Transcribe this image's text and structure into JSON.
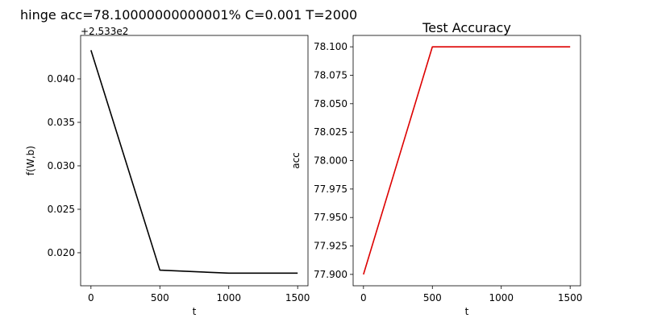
{
  "figure": {
    "suptitle": "hinge acc=78.10000000000001% C=0.001 T=2000"
  },
  "chart_data": [
    {
      "type": "line",
      "title": "",
      "xlabel": "t",
      "ylabel": "f(W,b)",
      "offset_text": "+2.533e2",
      "x": [
        0,
        500,
        1000,
        1500
      ],
      "series": [
        {
          "color": "#000000",
          "values": [
            0.0433,
            0.018,
            0.01765,
            0.01765
          ]
        }
      ],
      "xlim": [
        -75,
        1575
      ],
      "ylim": [
        0.0162,
        0.045
      ],
      "xticks": [
        0,
        500,
        1000,
        1500
      ],
      "xtick_labels": [
        "0",
        "500",
        "1000",
        "1500"
      ],
      "yticks": [
        0.02,
        0.025,
        0.03,
        0.035,
        0.04
      ],
      "ytick_labels": [
        "0.020",
        "0.025",
        "0.030",
        "0.035",
        "0.040"
      ],
      "grid": false
    },
    {
      "type": "line",
      "title": "Test Accuracy",
      "xlabel": "t",
      "ylabel": "acc",
      "x": [
        0,
        500,
        1000,
        1500
      ],
      "series": [
        {
          "color": "#dd0000",
          "values": [
            77.9,
            78.1,
            78.1,
            78.1
          ]
        }
      ],
      "xlim": [
        -75,
        1575
      ],
      "ylim": [
        77.89,
        78.11
      ],
      "xticks": [
        0,
        500,
        1000,
        1500
      ],
      "xtick_labels": [
        "0",
        "500",
        "1000",
        "1500"
      ],
      "yticks": [
        77.9,
        77.925,
        77.95,
        77.975,
        78.0,
        78.025,
        78.05,
        78.075,
        78.1
      ],
      "ytick_labels": [
        "77.900",
        "77.925",
        "77.950",
        "77.975",
        "78.000",
        "78.025",
        "78.050",
        "78.075",
        "78.100"
      ],
      "grid": false
    }
  ]
}
